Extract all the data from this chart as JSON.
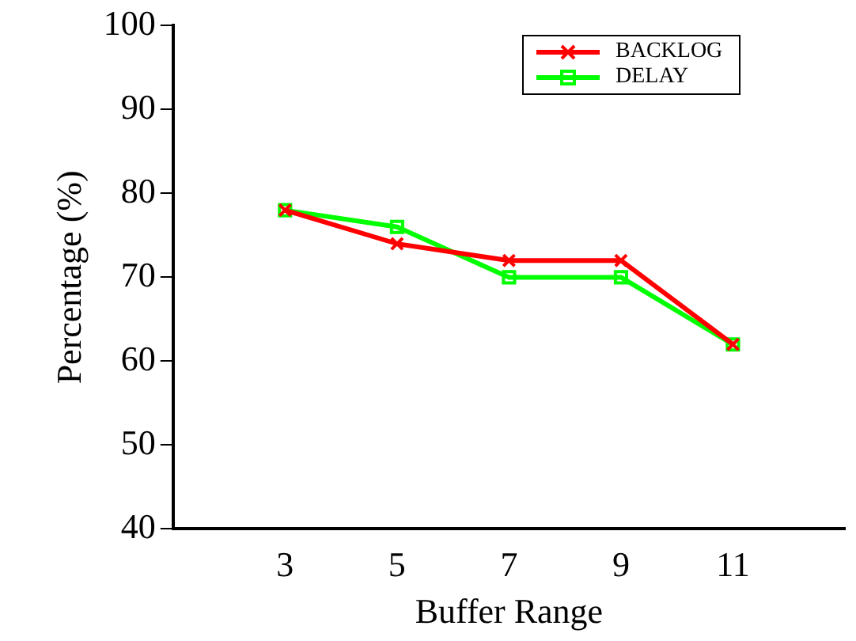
{
  "chart_data": {
    "type": "line",
    "xlabel": "Buffer Range",
    "ylabel": "Percentage (%)",
    "x": [
      3,
      5,
      7,
      9,
      11
    ],
    "series": [
      {
        "name": "BACKLOG",
        "color": "#ff0000",
        "values": [
          78,
          74,
          72,
          72,
          62
        ],
        "marker": "cross"
      },
      {
        "name": "DELAY",
        "color": "#00ff00",
        "values": [
          78,
          76,
          70,
          70,
          62
        ],
        "marker": "square"
      }
    ],
    "xlim": [
      1,
      13
    ],
    "xticks": [
      3,
      5,
      7,
      9,
      11
    ],
    "ylim": [
      40,
      100
    ],
    "yticks": [
      40,
      50,
      60,
      70,
      80,
      90,
      100
    ],
    "grid": false,
    "legend": "top right",
    "line_style": "solid"
  }
}
